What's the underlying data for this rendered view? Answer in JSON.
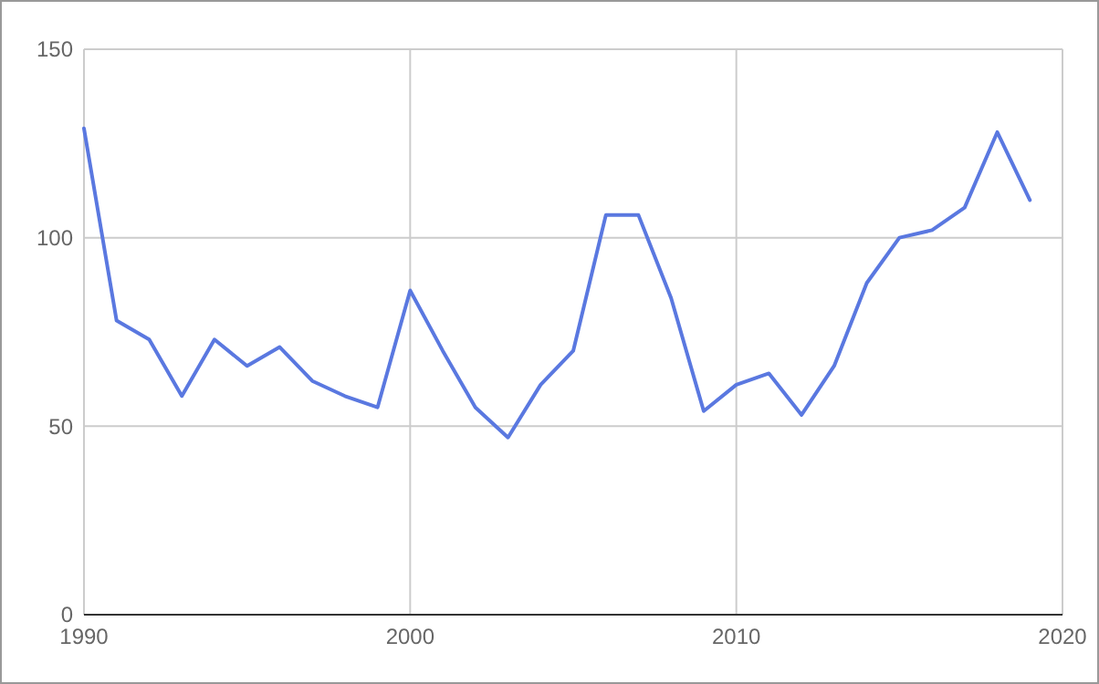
{
  "chart_data": {
    "type": "line",
    "x": [
      1990,
      1991,
      1992,
      1993,
      1994,
      1995,
      1996,
      1997,
      1998,
      1999,
      2000,
      2001,
      2002,
      2003,
      2004,
      2005,
      2006,
      2007,
      2008,
      2009,
      2010,
      2011,
      2012,
      2013,
      2014,
      2015,
      2016,
      2017,
      2018,
      2019
    ],
    "series": [
      {
        "color": "#5a78e0",
        "values": [
          129,
          78,
          73,
          58,
          73,
          66,
          71,
          62,
          58,
          55,
          86,
          70,
          55,
          47,
          61,
          70,
          106,
          106,
          84,
          54,
          61,
          64,
          53,
          66,
          88,
          100,
          102,
          108,
          128,
          110
        ]
      }
    ],
    "xlim": [
      1990,
      2020
    ],
    "xticks": [
      1990,
      2000,
      2010,
      2020
    ],
    "ylim": [
      0,
      150
    ],
    "yticks": [
      0,
      50,
      100,
      150
    ],
    "grid": true,
    "marker": "none",
    "line_style": "solid"
  }
}
